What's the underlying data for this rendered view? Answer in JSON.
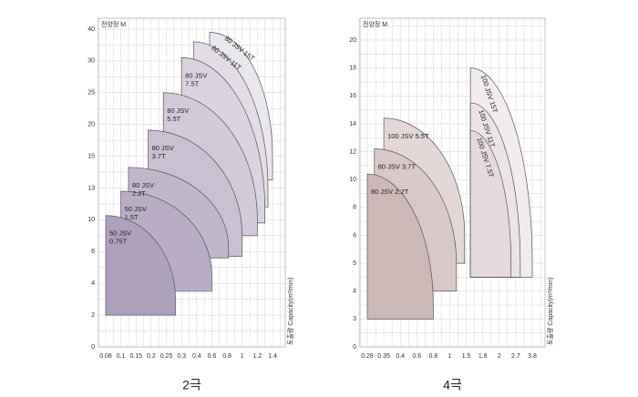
{
  "chart_data": [
    {
      "type": "region",
      "ylabel": "전양정 M",
      "xlabel": "토출량 Capacity(m³/min)",
      "caption": "2극",
      "xticks": [
        0.08,
        0.1,
        0.15,
        0.2,
        0.25,
        0.3,
        0.4,
        0.6,
        0.8,
        1,
        1.2,
        1.4
      ],
      "yticks": [
        0,
        2,
        4,
        6,
        10,
        13,
        15,
        20,
        25,
        30,
        40
      ],
      "grid": true,
      "regions": [
        {
          "label_lines": [
            "50 JSV",
            "0.75T"
          ],
          "q_min": 0.08,
          "q_max": 0.28,
          "h_max": 10.4,
          "h_min": 2,
          "h_end": 3,
          "color": "#aea1bb"
        },
        {
          "label_lines": [
            "50 JSV",
            "1.5T"
          ],
          "q_min": 0.1,
          "q_max": 0.6,
          "h_max": 12.7,
          "h_min": 3.5,
          "h_end": 4.5,
          "color": "#b8adc4"
        },
        {
          "label_lines": [
            "80 JSV",
            "2.2T"
          ],
          "q_min": 0.125,
          "q_max": 0.82,
          "h_max": 14.3,
          "h_min": 5.6,
          "h_end": 6.5,
          "color": "#c1b7cb"
        },
        {
          "label_lines": [
            "80 JSV",
            "3.7T"
          ],
          "q_min": 0.19,
          "q_max": 1,
          "h_max": 19.1,
          "h_min": 5.7,
          "h_end": 8,
          "color": "#c9c0d2"
        },
        {
          "label_lines": [
            "80 JSV",
            "5.5T"
          ],
          "q_min": 0.24,
          "q_max": 1.2,
          "h_max": 25,
          "h_min": 8,
          "h_end": 10,
          "color": "#d1cad9"
        },
        {
          "label_lines": [
            "80 JSV",
            "7.5T"
          ],
          "q_min": 0.3,
          "q_max": 1.3,
          "h_max": 31,
          "h_min": 9.6,
          "h_end": 11,
          "color": "#d9d3df"
        },
        {
          "label_lines": [
            "80 JSV 11T"
          ],
          "q_min": 0.38,
          "q_max": 1.34,
          "h_max": 36,
          "h_min": 11.2,
          "h_end": 13,
          "color": "#e1dce6"
        },
        {
          "label_lines": [
            "80 JSV 15T"
          ],
          "q_min": 0.57,
          "q_max": 1.4,
          "h_max": 39,
          "h_min": 13.5,
          "h_end": 15,
          "color": "#e9e6ed"
        }
      ]
    },
    {
      "type": "region",
      "ylabel": "전양정 M",
      "xlabel": "토출량 Capacity(m³/min)",
      "caption": "4극",
      "xticks": [
        0.28,
        0.35,
        0.4,
        0.6,
        0.8,
        1,
        1.5,
        1.9,
        2,
        2.7,
        3.8
      ],
      "yticks": [
        0,
        3,
        4,
        5,
        6,
        8,
        10,
        12,
        14,
        16,
        18,
        20
      ],
      "grid": true,
      "regions": [
        {
          "label_lines": [
            "80 JSV 2.2T"
          ],
          "q_min": 0.28,
          "q_max": 0.8,
          "h_max": 10.4,
          "h_min": 3,
          "h_end": 3.5,
          "color": "#cdb8b8"
        },
        {
          "label_lines": [
            "80 JSV 3.7T"
          ],
          "q_min": 0.31,
          "q_max": 1.2,
          "h_max": 12.2,
          "h_min": 4,
          "h_end": 5,
          "color": "#d8c8c8"
        },
        {
          "label_lines": [
            "100 JSV 5.5T"
          ],
          "q_min": 0.35,
          "q_max": 1.45,
          "h_max": 14.4,
          "h_min": 5,
          "h_end": 6,
          "color": "#e2d6d6"
        },
        {
          "label_lines": [
            "100 JSV 7.5T"
          ],
          "q_min": 1.6,
          "q_max": 2.5,
          "h_max": 13.5,
          "h_min": 4.5,
          "h_end": 5,
          "color": "#e4dadb"
        },
        {
          "label_lines": [
            "100 JSV 11T"
          ],
          "q_min": 1.6,
          "q_max": 3,
          "h_max": 15.5,
          "h_min": 4.5,
          "h_end": 5,
          "color": "#ebe3e4"
        },
        {
          "label_lines": [
            "100 JSV 15T"
          ],
          "q_min": 1.6,
          "q_max": 3.8,
          "h_max": 18,
          "h_min": 4.5,
          "h_end": 5,
          "color": "#f2eced"
        }
      ]
    }
  ]
}
